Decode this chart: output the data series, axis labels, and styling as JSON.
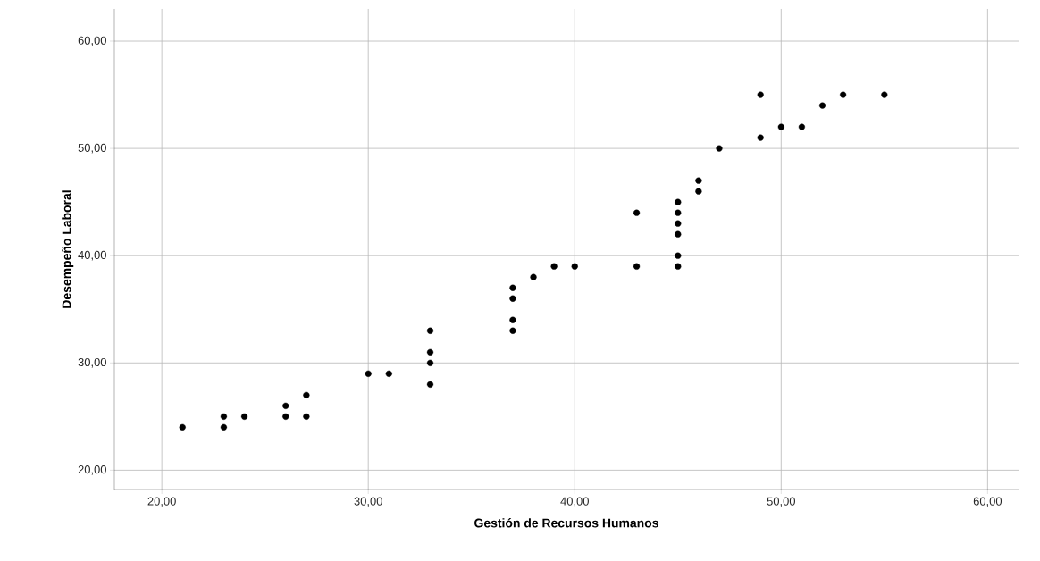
{
  "chart_data": {
    "type": "scatter",
    "xlabel": "Gestión de Recursos Humanos",
    "ylabel": "Desempeño Laboral",
    "x": [
      21,
      23,
      23,
      24,
      26,
      26,
      27,
      27,
      30,
      31,
      33,
      33,
      33,
      33,
      37,
      37,
      37,
      37,
      38,
      39,
      40,
      43,
      43,
      45,
      45,
      45,
      45,
      45,
      45,
      46,
      46,
      47,
      49,
      49,
      50,
      51,
      52,
      53,
      55
    ],
    "values": [
      24,
      25,
      24,
      25,
      26,
      25,
      27,
      25,
      29,
      29,
      33,
      31,
      30,
      28,
      37,
      36,
      34,
      33,
      38,
      39,
      39,
      44,
      39,
      45,
      44,
      43,
      42,
      40,
      39,
      47,
      46,
      50,
      55,
      51,
      52,
      52,
      54,
      55,
      55
    ],
    "color": "#000000",
    "marker": "circle",
    "grid": true,
    "xlim": [
      17.7,
      61.5
    ],
    "ylim": [
      18.2,
      63
    ],
    "xticks": [
      {
        "value": 20,
        "label": "20,00"
      },
      {
        "value": 30,
        "label": "30,00"
      },
      {
        "value": 40,
        "label": "40,00"
      },
      {
        "value": 50,
        "label": "50,00"
      },
      {
        "value": 60,
        "label": "60,00"
      }
    ],
    "yticks": [
      {
        "value": 20,
        "label": "20,00"
      },
      {
        "value": 30,
        "label": "30,00"
      },
      {
        "value": 40,
        "label": "40,00"
      },
      {
        "value": 50,
        "label": "50,00"
      },
      {
        "value": 60,
        "label": "60,00"
      }
    ]
  }
}
